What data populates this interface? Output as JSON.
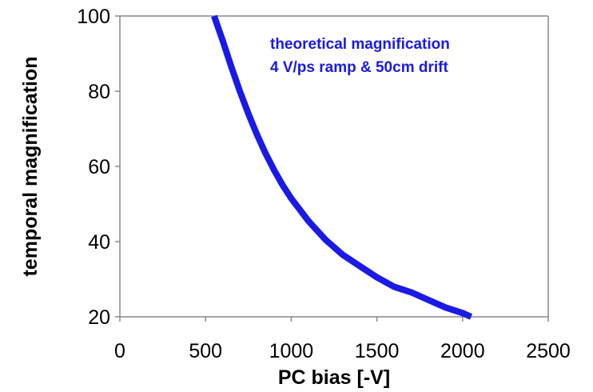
{
  "chart_data": {
    "type": "line",
    "xlabel": "PC bias [-V]",
    "ylabel": "temporal magnification",
    "xlim": [
      0,
      2500
    ],
    "ylim": [
      20,
      100
    ],
    "x_ticks": [
      "0",
      "500",
      "1000",
      "1500",
      "2000",
      "2500"
    ],
    "y_ticks": [
      "20",
      "40",
      "60",
      "80",
      "100"
    ],
    "grid": false,
    "annotation": [
      "theoretical magnification",
      "4 V/ps ramp & 50cm drift"
    ],
    "series": [
      {
        "color": "#1a1ae6",
        "x": [
          550,
          600,
          650,
          700,
          750,
          800,
          850,
          900,
          950,
          1000,
          1050,
          1100,
          1150,
          1200,
          1300,
          1400,
          1500,
          1600,
          1700,
          1800,
          1900,
          2000,
          2050
        ],
        "y": [
          100,
          93.5,
          86.5,
          80,
          74,
          68.5,
          63.5,
          59,
          55,
          51.5,
          48.5,
          45.5,
          43,
          40.5,
          36.5,
          33.5,
          30.5,
          28,
          26.5,
          24.5,
          22.5,
          21,
          20
        ]
      }
    ]
  }
}
